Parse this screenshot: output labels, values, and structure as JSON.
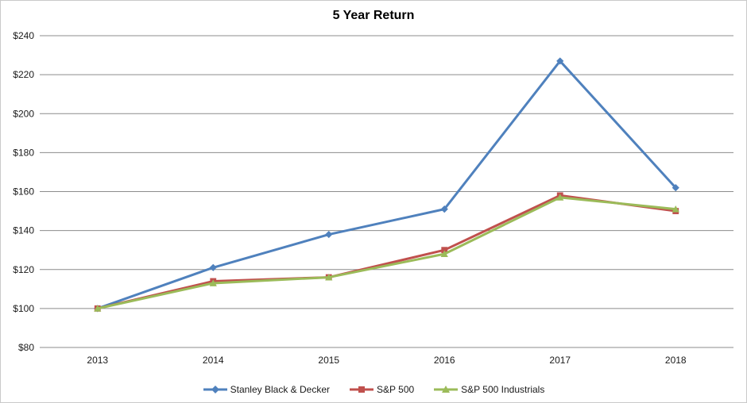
{
  "chart_data": {
    "type": "line",
    "title": "5 Year Return",
    "categories": [
      "2013",
      "2014",
      "2015",
      "2016",
      "2017",
      "2018"
    ],
    "series": [
      {
        "name": "Stanley Black & Decker",
        "values": [
          100,
          121,
          138,
          151,
          227,
          162
        ],
        "color": "#4F81BD",
        "marker": "diamond"
      },
      {
        "name": "S&P 500",
        "values": [
          100,
          114,
          116,
          130,
          158,
          150
        ],
        "color": "#C0504D",
        "marker": "square"
      },
      {
        "name": "S&P 500 Industrials",
        "values": [
          100,
          113,
          116,
          128,
          157,
          151
        ],
        "color": "#9BBB59",
        "marker": "triangle"
      }
    ],
    "xlabel": "",
    "ylabel": "",
    "ylim": [
      80,
      240
    ],
    "ytick_step": 20,
    "ytick_prefix": "$",
    "ytick_labels": [
      "$80",
      "$100",
      "$120",
      "$140",
      "$160",
      "$180",
      "$200",
      "$220",
      "$240"
    ],
    "grid": true,
    "gridline_color": "#8C8C8C",
    "tick_label_color": "#1a1a1a",
    "legend_position": "bottom"
  }
}
